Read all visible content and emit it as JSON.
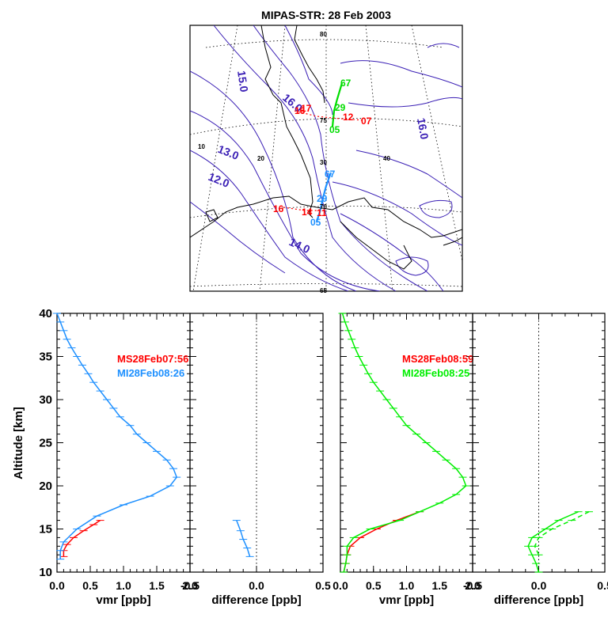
{
  "title": "MIPAS-STR: 28 Feb 2003",
  "map": {
    "lat_labels": [
      "80",
      "75",
      "70",
      "65"
    ],
    "lon_labels": [
      "10",
      "20",
      "30",
      "40"
    ],
    "contour_labels": [
      "15.0",
      "16.0",
      "13.0",
      "12.0",
      "14.0",
      "16.0"
    ],
    "track1_labels": [
      "16",
      "17",
      "12",
      "07"
    ],
    "track2_labels": [
      "16",
      "14",
      "11"
    ],
    "green_track_labels": [
      "67",
      "29",
      "05"
    ],
    "blue_track_labels": [
      "67",
      "29",
      "05"
    ]
  },
  "chart_data": [
    {
      "type": "line",
      "panel": "profile-left",
      "xlabel": "vmr [ppb]",
      "ylabel": "Altitude [km]",
      "xlim": [
        0.0,
        2.0
      ],
      "ylim": [
        10,
        40
      ],
      "xticks": [
        "0.0",
        "0.5",
        "1.0",
        "1.5",
        "2.0"
      ],
      "yticks": [
        "10",
        "15",
        "20",
        "25",
        "30",
        "35",
        "40"
      ],
      "legend": [
        "MS28Feb07:56",
        "MI28Feb08:26"
      ],
      "series": [
        {
          "name": "MS28Feb07:56",
          "color": "#ff0000",
          "points": [
            [
              0.1,
              11.8
            ],
            [
              0.1,
              12.5
            ],
            [
              0.15,
              13.2
            ],
            [
              0.25,
              14.0
            ],
            [
              0.4,
              14.8
            ],
            [
              0.55,
              15.5
            ],
            [
              0.65,
              16.0
            ]
          ]
        },
        {
          "name": "MI28Feb08:26",
          "color": "#1e90ff",
          "points": [
            [
              0.05,
              11.5
            ],
            [
              0.05,
              12.5
            ],
            [
              0.1,
              13.5
            ],
            [
              0.3,
              15.0
            ],
            [
              0.6,
              16.5
            ],
            [
              1.0,
              17.8
            ],
            [
              1.4,
              18.8
            ],
            [
              1.7,
              20.0
            ],
            [
              1.8,
              21.0
            ],
            [
              1.75,
              22.0
            ],
            [
              1.65,
              23.0
            ],
            [
              1.5,
              24.0
            ],
            [
              1.35,
              25.0
            ],
            [
              1.2,
              26.0
            ],
            [
              1.1,
              27.0
            ],
            [
              0.95,
              28.0
            ],
            [
              0.85,
              29.0
            ],
            [
              0.75,
              30.0
            ],
            [
              0.65,
              31.0
            ],
            [
              0.55,
              32.0
            ],
            [
              0.47,
              33.0
            ],
            [
              0.38,
              34.0
            ],
            [
              0.3,
              35.0
            ],
            [
              0.22,
              36.0
            ],
            [
              0.15,
              37.0
            ],
            [
              0.1,
              38.0
            ],
            [
              0.05,
              39.0
            ],
            [
              0.0,
              40.0
            ]
          ]
        }
      ]
    },
    {
      "type": "line",
      "panel": "difference-left",
      "xlabel": "difference [ppb]",
      "xlim": [
        -0.5,
        0.5
      ],
      "ylim": [
        10,
        40
      ],
      "xticks": [
        "-0.5",
        "0.0",
        "0.5"
      ],
      "series": [
        {
          "color": "#1e90ff",
          "points": [
            [
              -0.05,
              11.8
            ],
            [
              -0.07,
              12.8
            ],
            [
              -0.1,
              13.8
            ],
            [
              -0.12,
              14.8
            ],
            [
              -0.15,
              16.0
            ]
          ]
        }
      ]
    },
    {
      "type": "line",
      "panel": "profile-right",
      "xlabel": "vmr [ppb]",
      "xlim": [
        0.0,
        2.0
      ],
      "ylim": [
        10,
        40
      ],
      "xticks": [
        "0.0",
        "0.5",
        "1.0",
        "1.5",
        "2.0"
      ],
      "legend": [
        "MS28Feb08:59",
        "MI28Feb08:25"
      ],
      "series": [
        {
          "name": "MS28Feb08:59",
          "color": "#ff0000",
          "points": [
            [
              0.05,
              10.0
            ],
            [
              0.08,
              11.0
            ],
            [
              0.1,
              12.0
            ],
            [
              0.15,
              13.0
            ],
            [
              0.3,
              14.0
            ],
            [
              0.55,
              15.0
            ],
            [
              0.85,
              16.0
            ],
            [
              1.2,
              17.0
            ]
          ]
        },
        {
          "name": "MI28Feb08:25",
          "color": "#00ee00",
          "points": [
            [
              0.05,
              10.0
            ],
            [
              0.08,
              11.0
            ],
            [
              0.1,
              12.0
            ],
            [
              0.1,
              13.0
            ],
            [
              0.2,
              14.0
            ],
            [
              0.45,
              15.0
            ],
            [
              0.9,
              16.0
            ],
            [
              1.2,
              17.0
            ],
            [
              1.5,
              18.0
            ],
            [
              1.75,
              19.0
            ],
            [
              1.9,
              20.0
            ],
            [
              1.85,
              21.0
            ],
            [
              1.75,
              22.0
            ],
            [
              1.6,
              23.0
            ],
            [
              1.45,
              24.0
            ],
            [
              1.3,
              25.0
            ],
            [
              1.15,
              26.0
            ],
            [
              1.0,
              27.0
            ],
            [
              0.9,
              28.0
            ],
            [
              0.8,
              29.0
            ],
            [
              0.7,
              30.0
            ],
            [
              0.6,
              31.0
            ],
            [
              0.5,
              32.0
            ],
            [
              0.42,
              33.0
            ],
            [
              0.35,
              34.0
            ],
            [
              0.28,
              35.0
            ],
            [
              0.22,
              36.0
            ],
            [
              0.17,
              37.0
            ],
            [
              0.12,
              38.0
            ],
            [
              0.07,
              39.0
            ],
            [
              0.03,
              40.0
            ]
          ]
        }
      ]
    },
    {
      "type": "line",
      "panel": "difference-right",
      "xlabel": "difference [ppb]",
      "xlim": [
        -0.5,
        0.5
      ],
      "ylim": [
        10,
        40
      ],
      "xticks": [
        "-0.5",
        "0.0",
        "0.5"
      ],
      "series": [
        {
          "color": "#00ee00",
          "points": [
            [
              0.0,
              10.0
            ],
            [
              -0.02,
              11.0
            ],
            [
              -0.05,
              12.0
            ],
            [
              -0.08,
              13.0
            ],
            [
              -0.05,
              14.0
            ],
            [
              0.05,
              15.0
            ],
            [
              0.15,
              16.0
            ],
            [
              0.3,
              17.0
            ]
          ]
        },
        {
          "color": "#00ee00",
          "dashed": true,
          "points": [
            [
              0.0,
              12.0
            ],
            [
              -0.03,
              13.0
            ],
            [
              0.0,
              14.0
            ],
            [
              0.1,
              15.0
            ],
            [
              0.25,
              16.0
            ],
            [
              0.38,
              17.0
            ]
          ]
        }
      ]
    }
  ]
}
